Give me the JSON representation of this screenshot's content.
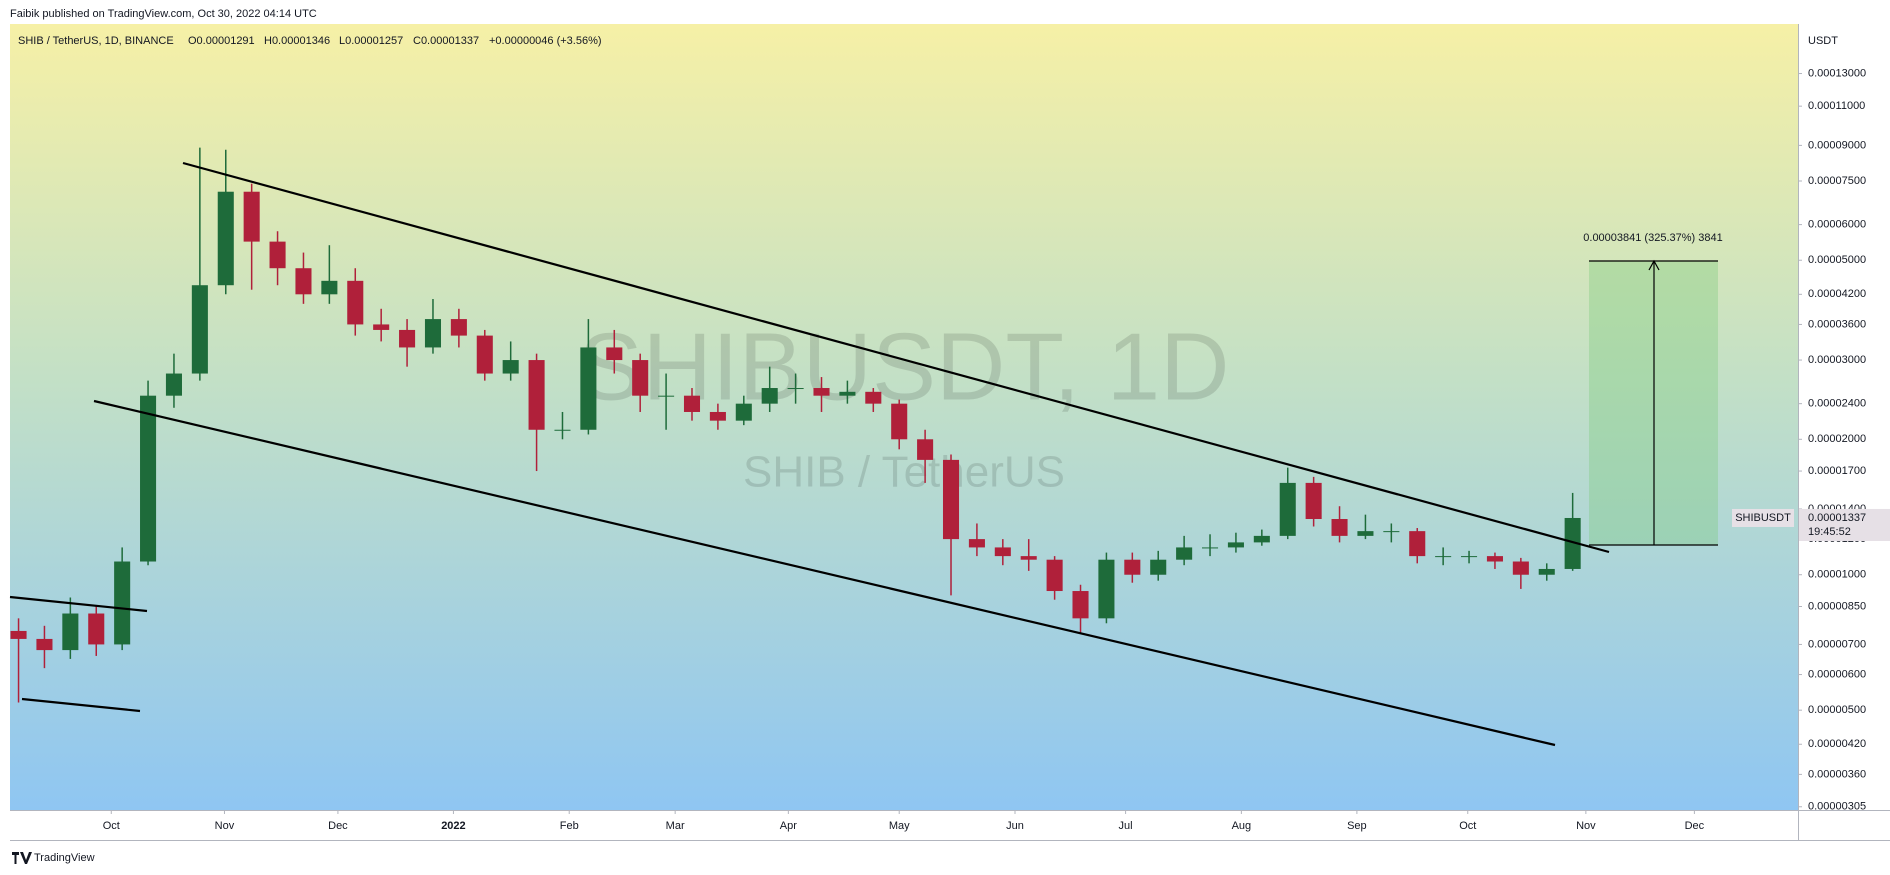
{
  "header": {
    "published": "Faibik published on TradingView.com, Oct 30, 2022 04:14 UTC"
  },
  "legend": {
    "symbol": "SHIB / TetherUS, 1D, BINANCE",
    "open": "O0.00001291",
    "high": "H0.00001346",
    "low": "L0.00001257",
    "close": "C0.00001337",
    "change": "+0.00000046 (+3.56%)"
  },
  "watermark": {
    "main": "SHIBUSDT, 1D",
    "sub": "SHIB / TetherUS"
  },
  "measure": {
    "label": "0.00003841 (325.37%) 3841"
  },
  "price_tag": {
    "symbol": "SHIBUSDT",
    "price": "0.00001337",
    "countdown": "19:45:52"
  },
  "footer": {
    "brand": "TradingView"
  },
  "chart_data": {
    "type": "candlestick",
    "y_axis_label": "USDT",
    "log_scale": true,
    "up_color": "#1e6b3a",
    "down_color": "#b0203a",
    "open": [
      7.5e-06,
      7.2e-06,
      6.8e-06,
      8.2e-06,
      7e-06,
      1.07e-05,
      2.5e-05,
      2.8e-05,
      4.4e-05,
      7.1e-05,
      5.5e-05,
      4.8e-05,
      4.2e-05,
      4.5e-05,
      3.6e-05,
      3.5e-05,
      3.2e-05,
      3.7e-05,
      3.4e-05,
      2.8e-05,
      3e-05,
      2.1e-05,
      2.1e-05,
      3.2e-05,
      3e-05,
      2.5e-05,
      2.5e-05,
      2.3e-05,
      2.2e-05,
      2.4e-05,
      2.6e-05,
      2.6e-05,
      2.5e-05,
      2.55e-05,
      2.4e-05,
      2e-05,
      1.8e-05,
      1.2e-05,
      1.15e-05,
      1.1e-05,
      1.08e-05,
      9.2e-06,
      8e-06,
      1.08e-05,
      1e-05,
      1.08e-05,
      1.15e-05,
      1.15e-05,
      1.18e-05,
      1.22e-05,
      1.6e-05,
      1.33e-05,
      1.22e-05,
      1.25e-05,
      1.25e-05,
      1.1e-05,
      1.1e-05,
      1.1e-05,
      1.07e-05,
      1e-05,
      1.03e-05
    ],
    "high": [
      8e-06,
      7.7e-06,
      8.9e-06,
      8.5e-06,
      1.15e-05,
      2.7e-05,
      3.1e-05,
      8.9e-05,
      8.8e-05,
      7.4e-05,
      5.8e-05,
      5.2e-05,
      5.4e-05,
      4.8e-05,
      3.9e-05,
      3.7e-05,
      4.1e-05,
      3.9e-05,
      3.5e-05,
      3.3e-05,
      3.1e-05,
      2.3e-05,
      3.7e-05,
      3.5e-05,
      3.1e-05,
      2.8e-05,
      2.6e-05,
      2.4e-05,
      2.5e-05,
      2.9e-05,
      2.8e-05,
      2.75e-05,
      2.7e-05,
      2.6e-05,
      2.45e-05,
      2.1e-05,
      1.85e-05,
      1.3e-05,
      1.2e-05,
      1.2e-05,
      1.1e-05,
      9.5e-06,
      1.12e-05,
      1.12e-05,
      1.13e-05,
      1.22e-05,
      1.23e-05,
      1.24e-05,
      1.26e-05,
      1.73e-05,
      1.65e-05,
      1.42e-05,
      1.36e-05,
      1.3e-05,
      1.27e-05,
      1.15e-05,
      1.13e-05,
      1.12e-05,
      1.09e-05,
      1.06e-05,
      1.52e-05
    ],
    "low": [
      5.2e-06,
      6.2e-06,
      6.5e-06,
      6.6e-06,
      6.8e-06,
      1.05e-05,
      2.35e-05,
      2.7e-05,
      4.2e-05,
      4.3e-05,
      4.4e-05,
      4e-05,
      4e-05,
      3.4e-05,
      3.3e-05,
      2.9e-05,
      3.1e-05,
      3.2e-05,
      2.7e-05,
      2.7e-05,
      1.7e-05,
      2e-05,
      2.05e-05,
      2.8e-05,
      2.3e-05,
      2.1e-05,
      2.2e-05,
      2.1e-05,
      2.15e-05,
      2.3e-05,
      2.4e-05,
      2.3e-05,
      2.4e-05,
      2.3e-05,
      1.9e-05,
      1.6e-05,
      9e-06,
      1.1e-05,
      1.05e-05,
      1.02e-05,
      8.8e-06,
      7.4e-06,
      7.8e-06,
      9.6e-06,
      9.7e-06,
      1.05e-05,
      1.1e-05,
      1.12e-05,
      1.16e-05,
      1.2e-05,
      1.28e-05,
      1.18e-05,
      1.2e-05,
      1.18e-05,
      1.06e-05,
      1.05e-05,
      1.06e-05,
      1.03e-05,
      9.3e-06,
      9.7e-06,
      1.02e-05
    ],
    "close": [
      7.2e-06,
      6.8e-06,
      8.2e-06,
      7e-06,
      1.07e-05,
      2.5e-05,
      2.8e-05,
      4.4e-05,
      7.1e-05,
      5.5e-05,
      4.8e-05,
      4.2e-05,
      4.5e-05,
      3.6e-05,
      3.5e-05,
      3.2e-05,
      3.7e-05,
      3.4e-05,
      2.8e-05,
      3e-05,
      2.1e-05,
      2.1e-05,
      3.2e-05,
      3e-05,
      2.5e-05,
      2.5e-05,
      2.3e-05,
      2.2e-05,
      2.4e-05,
      2.6e-05,
      2.6e-05,
      2.5e-05,
      2.55e-05,
      2.4e-05,
      2e-05,
      1.8e-05,
      1.2e-05,
      1.15e-05,
      1.1e-05,
      1.08e-05,
      9.2e-06,
      8e-06,
      1.08e-05,
      1e-05,
      1.08e-05,
      1.15e-05,
      1.15e-05,
      1.18e-05,
      1.22e-05,
      1.6e-05,
      1.33e-05,
      1.22e-05,
      1.25e-05,
      1.25e-05,
      1.1e-05,
      1.1e-05,
      1.1e-05,
      1.07e-05,
      1e-05,
      1.03e-05,
      1.337e-05
    ],
    "ylim": [
      3e-06,
      0.0001675
    ],
    "yticks": [
      {
        "value": 0.00013,
        "label": "0.00013000"
      },
      {
        "value": 0.00011,
        "label": "0.00011000"
      },
      {
        "value": 9e-05,
        "label": "0.00009000"
      },
      {
        "value": 7.5e-05,
        "label": "0.00007500"
      },
      {
        "value": 6e-05,
        "label": "0.00006000"
      },
      {
        "value": 5e-05,
        "label": "0.00005000"
      },
      {
        "value": 4.2e-05,
        "label": "0.00004200"
      },
      {
        "value": 3.6e-05,
        "label": "0.00003600"
      },
      {
        "value": 3e-05,
        "label": "0.00003000"
      },
      {
        "value": 2.4e-05,
        "label": "0.00002400"
      },
      {
        "value": 2e-05,
        "label": "0.00002000"
      },
      {
        "value": 1.7e-05,
        "label": "0.00001700"
      },
      {
        "value": 1.4e-05,
        "label": "0.00001400"
      },
      {
        "value": 1.2e-05,
        "label": "0.00001200"
      },
      {
        "value": 1e-05,
        "label": "0.00001000"
      },
      {
        "value": 8.5e-06,
        "label": "0.00000850"
      },
      {
        "value": 7e-06,
        "label": "0.00000700"
      },
      {
        "value": 6e-06,
        "label": "0.00000600"
      },
      {
        "value": 5e-06,
        "label": "0.00000500"
      },
      {
        "value": 4.2e-06,
        "label": "0.00000420"
      },
      {
        "value": 3.6e-06,
        "label": "0.00000360"
      },
      {
        "value": 3.05e-06,
        "label": "0.00000305"
      }
    ],
    "xlim": [
      -0.33,
      68.7
    ],
    "xticks": [
      {
        "value": 3.58,
        "label": "Oct"
      },
      {
        "value": 7.95,
        "label": "Nov"
      },
      {
        "value": 12.33,
        "label": "Dec"
      },
      {
        "value": 16.79,
        "label": "2022"
      },
      {
        "value": 21.26,
        "label": "Feb"
      },
      {
        "value": 25.35,
        "label": "Mar"
      },
      {
        "value": 29.72,
        "label": "Apr"
      },
      {
        "value": 34.0,
        "label": "May"
      },
      {
        "value": 38.47,
        "label": "Jun"
      },
      {
        "value": 42.74,
        "label": "Jul"
      },
      {
        "value": 47.21,
        "label": "Aug"
      },
      {
        "value": 51.67,
        "label": "Sep"
      },
      {
        "value": 55.95,
        "label": "Oct"
      },
      {
        "value": 60.51,
        "label": "Nov"
      },
      {
        "value": 64.7,
        "label": "Dec"
      }
    ]
  }
}
